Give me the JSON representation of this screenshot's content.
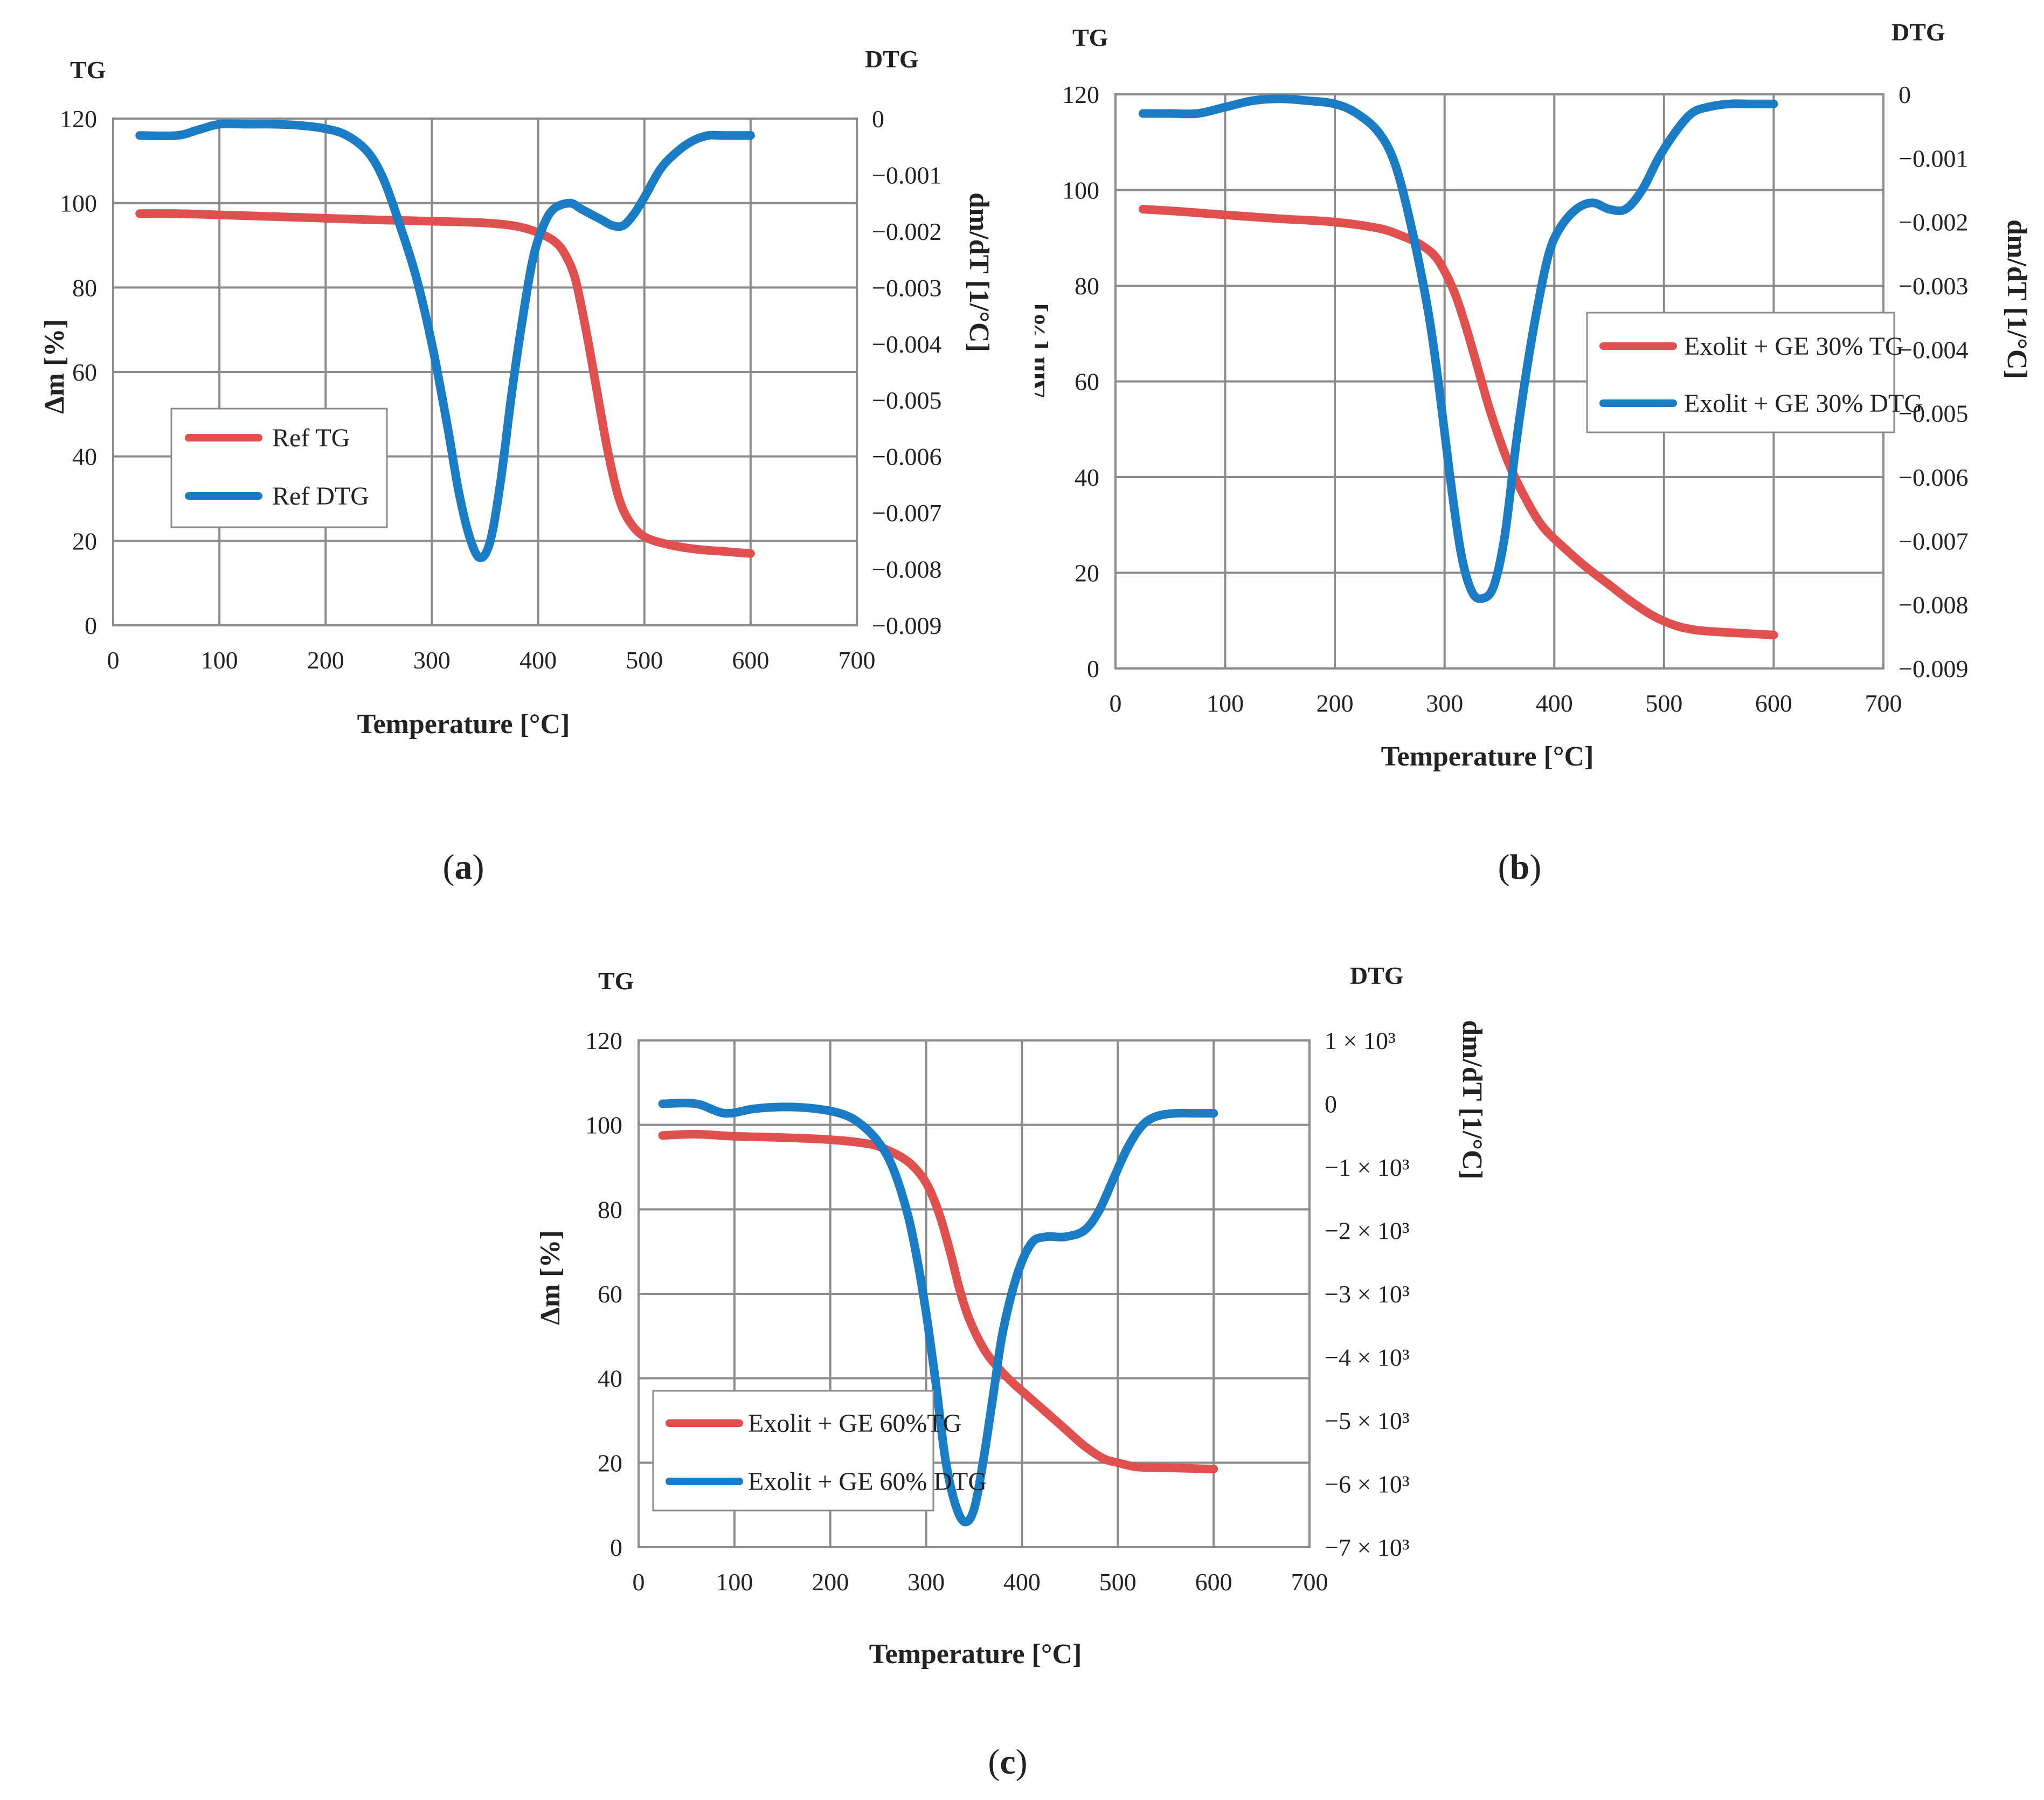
{
  "chart_data": [
    {
      "id": "a",
      "type": "line",
      "panel_label": "a",
      "left_title": "TG",
      "right_title": "DTG",
      "xlabel": "Temperature [°C]",
      "ylabel": "Δm [%]",
      "y2label": "dm/dT [1/°C]",
      "xlim": [
        0,
        700
      ],
      "ylim": [
        0,
        120
      ],
      "y2lim": [
        -0.009,
        0
      ],
      "x_ticks": [
        "0",
        "100",
        "200",
        "300",
        "400",
        "500",
        "600",
        "700"
      ],
      "y_ticks": [
        "0",
        "20",
        "40",
        "60",
        "80",
        "100",
        "120"
      ],
      "y2_ticks": [
        "0",
        "−0.001",
        "−0.002",
        "−0.003",
        "−0.004",
        "−0.005",
        "−0.006",
        "−0.007",
        "−0.008",
        "−0.009"
      ],
      "grid": true,
      "legend_position": "lower-left",
      "series": [
        {
          "name": "Ref TG",
          "axis": "left",
          "color": "#e0504f",
          "x": [
            25,
            60,
            100,
            150,
            200,
            250,
            300,
            350,
            380,
            400,
            415,
            425,
            435,
            445,
            455,
            465,
            475,
            485,
            500,
            525,
            550,
            575,
            600
          ],
          "y": [
            97.5,
            97.5,
            97.2,
            96.8,
            96.4,
            96,
            95.7,
            95.3,
            94.5,
            93,
            91,
            88,
            82,
            70,
            56,
            42,
            31,
            25,
            21,
            19,
            18,
            17.5,
            17
          ]
        },
        {
          "name": "Ref DTG",
          "axis": "right",
          "color": "#1a7cc4",
          "x": [
            25,
            60,
            80,
            100,
            125,
            150,
            175,
            200,
            220,
            240,
            255,
            270,
            285,
            300,
            315,
            325,
            335,
            345,
            355,
            365,
            375,
            385,
            395,
            405,
            415,
            430,
            440,
            450,
            460,
            470,
            480,
            490,
            500,
            515,
            530,
            545,
            560,
            575,
            600
          ],
          "y": [
            -0.0003,
            -0.0003,
            -0.0002,
            -0.0001,
            -0.0001,
            -0.0001,
            -0.00012,
            -0.00018,
            -0.0003,
            -0.0006,
            -0.0011,
            -0.0019,
            -0.0028,
            -0.004,
            -0.0055,
            -0.0066,
            -0.0074,
            -0.0078,
            -0.0075,
            -0.0064,
            -0.0049,
            -0.0036,
            -0.0025,
            -0.0019,
            -0.0016,
            -0.0015,
            -0.0016,
            -0.0017,
            -0.0018,
            -0.0019,
            -0.0019,
            -0.0017,
            -0.0014,
            -0.0009,
            -0.0006,
            -0.0004,
            -0.0003,
            -0.0003,
            -0.0003
          ]
        }
      ]
    },
    {
      "id": "b",
      "type": "line",
      "panel_label": "b",
      "left_title": "TG",
      "right_title": "DTG",
      "xlabel": "Temperature [°C]",
      "ylabel": "Δm [%]",
      "y2label": "dm/dT [1/°C]",
      "xlim": [
        0,
        700
      ],
      "ylim": [
        0,
        120
      ],
      "y2lim": [
        -0.009,
        0
      ],
      "x_ticks": [
        "0",
        "100",
        "200",
        "300",
        "400",
        "500",
        "600",
        "700"
      ],
      "y_ticks": [
        "0",
        "20",
        "40",
        "60",
        "80",
        "100",
        "120"
      ],
      "y2_ticks": [
        "0",
        "−0.001",
        "−0.002",
        "−0.003",
        "−0.004",
        "−0.005",
        "−0.006",
        "−0.007",
        "−0.008",
        "−0.009"
      ],
      "grid": true,
      "legend_position": "middle-right",
      "series": [
        {
          "name": "Exolit + GE 30% TG",
          "axis": "left",
          "color": "#e0504f",
          "x": [
            25,
            60,
            100,
            150,
            200,
            240,
            260,
            275,
            290,
            300,
            310,
            320,
            330,
            340,
            350,
            360,
            375,
            390,
            410,
            430,
            450,
            470,
            490,
            510,
            530,
            560,
            600
          ],
          "y": [
            96,
            95.5,
            94.8,
            94,
            93.3,
            92,
            90.5,
            89,
            86.5,
            83,
            78,
            71,
            63,
            55,
            48,
            42,
            35,
            29.5,
            25,
            21,
            17.5,
            14,
            11,
            9,
            8,
            7.5,
            7
          ]
        },
        {
          "name": "Exolit + GE 30% DTG",
          "axis": "right",
          "color": "#1a7cc4",
          "x": [
            25,
            50,
            75,
            100,
            125,
            150,
            175,
            200,
            220,
            240,
            255,
            270,
            285,
            295,
            305,
            315,
            325,
            335,
            345,
            355,
            365,
            375,
            385,
            395,
            405,
            420,
            435,
            450,
            465,
            480,
            495,
            510,
            525,
            540,
            560,
            580,
            600
          ],
          "y": [
            -0.0003,
            -0.0003,
            -0.0003,
            -0.0002,
            -0.0001,
            -7e-05,
            -0.0001,
            -0.00015,
            -0.0003,
            -0.0006,
            -0.0011,
            -0.0021,
            -0.0034,
            -0.0046,
            -0.006,
            -0.0072,
            -0.0078,
            -0.0079,
            -0.0077,
            -0.0069,
            -0.0055,
            -0.0043,
            -0.0033,
            -0.0025,
            -0.0021,
            -0.0018,
            -0.0017,
            -0.0018,
            -0.0018,
            -0.0015,
            -0.001,
            -0.0006,
            -0.0003,
            -0.0002,
            -0.00015,
            -0.00015,
            -0.00015
          ]
        }
      ]
    },
    {
      "id": "c",
      "type": "line",
      "panel_label": "c",
      "left_title": "TG",
      "right_title": "DTG",
      "xlabel": "Temperature [°C]",
      "ylabel": "Δm [%]",
      "y2label": "dm/dT [1/°C]",
      "xlim": [
        0,
        700
      ],
      "ylim": [
        0,
        120
      ],
      "y2lim": [
        -7000,
        1000
      ],
      "x_ticks": [
        "0",
        "100",
        "200",
        "300",
        "400",
        "500",
        "600",
        "700"
      ],
      "y_ticks": [
        "0",
        "20",
        "40",
        "60",
        "80",
        "100",
        "120"
      ],
      "y2_ticks": [
        "1 × 10³",
        "0",
        "−1 × 10³",
        "−2 × 10³",
        "−3 × 10³",
        "−4 × 10³",
        "−5 × 10³",
        "−6 × 10³",
        "−7 × 10³"
      ],
      "grid": true,
      "legend_position": "lower-left",
      "series": [
        {
          "name": "Exolit + GE 60%TG",
          "axis": "left",
          "color": "#e0504f",
          "x": [
            25,
            60,
            100,
            150,
            200,
            240,
            260,
            280,
            295,
            305,
            315,
            325,
            335,
            345,
            360,
            375,
            390,
            405,
            425,
            445,
            465,
            485,
            500,
            520,
            550,
            600
          ],
          "y": [
            97.5,
            97.8,
            97.3,
            97,
            96.5,
            95.5,
            94,
            91.5,
            88,
            84,
            78,
            70,
            61,
            54,
            47,
            42.5,
            39,
            36,
            32,
            28,
            24,
            21,
            20,
            19,
            18.8,
            18.5
          ]
        },
        {
          "name": "Exolit + GE 60% DTG",
          "axis": "right",
          "color": "#1a7cc4",
          "x": [
            25,
            60,
            90,
            120,
            150,
            180,
            210,
            230,
            250,
            265,
            280,
            290,
            300,
            310,
            320,
            330,
            340,
            350,
            360,
            370,
            380,
            395,
            410,
            425,
            445,
            465,
            480,
            495,
            510,
            525,
            540,
            560,
            580,
            600
          ],
          "y": [
            0,
            0,
            -150,
            -80,
            -50,
            -70,
            -150,
            -300,
            -600,
            -1000,
            -1700,
            -2400,
            -3300,
            -4400,
            -5600,
            -6300,
            -6600,
            -6400,
            -5600,
            -4600,
            -3600,
            -2700,
            -2200,
            -2100,
            -2100,
            -2000,
            -1700,
            -1200,
            -700,
            -350,
            -200,
            -150,
            -150,
            -150
          ]
        }
      ]
    }
  ]
}
